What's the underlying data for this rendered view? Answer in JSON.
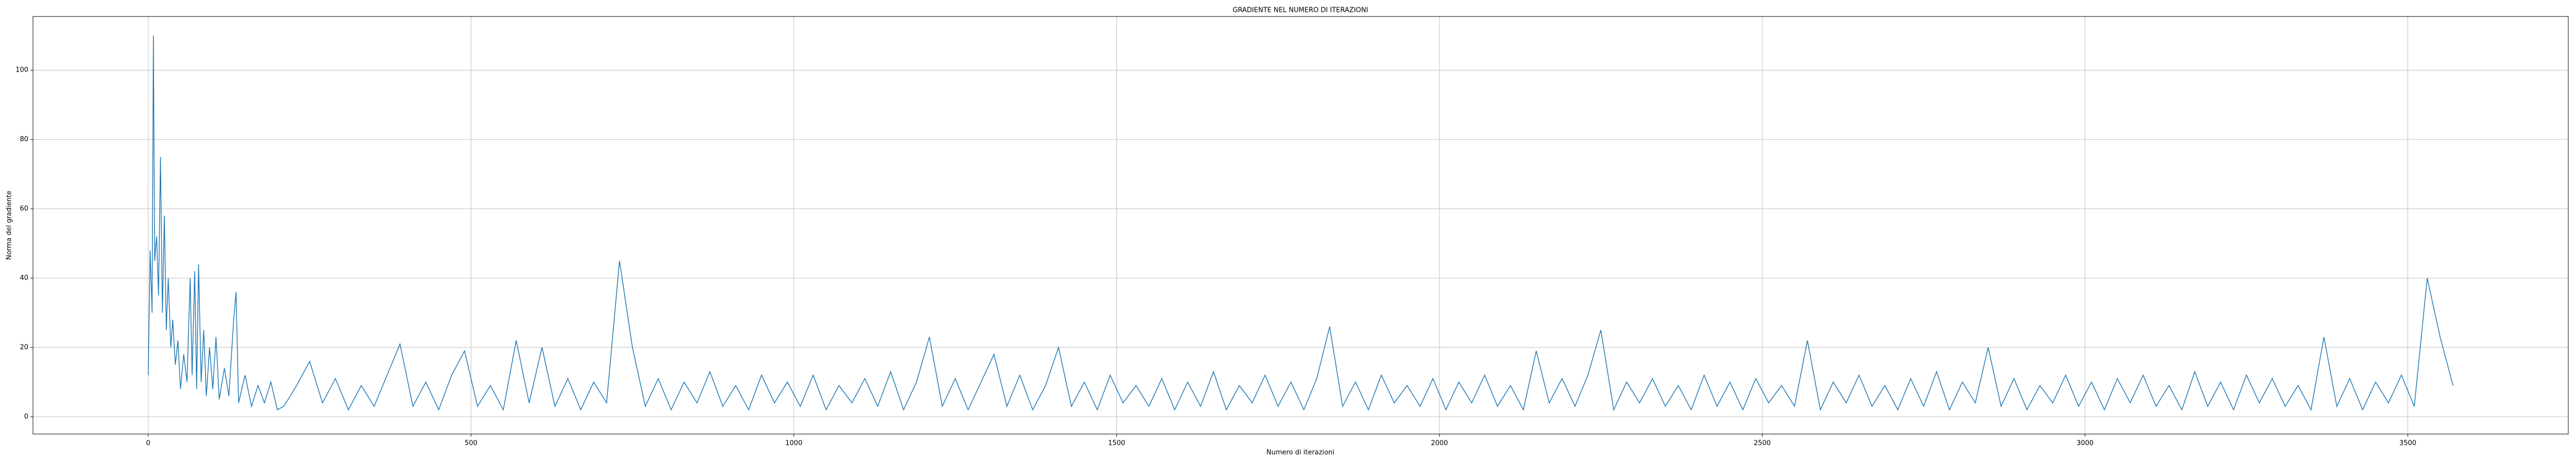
{
  "chart_data": {
    "type": "line",
    "title": "GRADIENTE NEL NUMERO DI ITERAZIONI",
    "xlabel": "Numero di iterazioni",
    "ylabel": "Norma del gradiente",
    "x": [
      0,
      3,
      6,
      8,
      10,
      13,
      16,
      19,
      22,
      25,
      28,
      31,
      35,
      38,
      42,
      46,
      50,
      55,
      60,
      65,
      68,
      72,
      75,
      78,
      82,
      86,
      90,
      95,
      100,
      105,
      110,
      118,
      125,
      132,
      136,
      140,
      150,
      160,
      170,
      180,
      190,
      200,
      210,
      230,
      250,
      270,
      290,
      310,
      330,
      350,
      370,
      390,
      410,
      430,
      450,
      470,
      490,
      510,
      530,
      550,
      570,
      590,
      610,
      630,
      650,
      670,
      690,
      710,
      730,
      750,
      770,
      790,
      810,
      830,
      850,
      870,
      890,
      910,
      930,
      950,
      970,
      990,
      1010,
      1030,
      1050,
      1070,
      1090,
      1110,
      1130,
      1150,
      1170,
      1190,
      1210,
      1230,
      1250,
      1270,
      1290,
      1310,
      1330,
      1350,
      1370,
      1390,
      1410,
      1430,
      1450,
      1470,
      1490,
      1510,
      1530,
      1550,
      1570,
      1590,
      1610,
      1630,
      1650,
      1670,
      1690,
      1710,
      1730,
      1750,
      1770,
      1790,
      1810,
      1830,
      1850,
      1870,
      1890,
      1910,
      1930,
      1950,
      1970,
      1990,
      2010,
      2030,
      2050,
      2070,
      2090,
      2110,
      2130,
      2150,
      2170,
      2190,
      2210,
      2230,
      2250,
      2270,
      2290,
      2310,
      2330,
      2350,
      2370,
      2390,
      2410,
      2430,
      2450,
      2470,
      2490,
      2510,
      2530,
      2550,
      2570,
      2590,
      2610,
      2630,
      2650,
      2670,
      2690,
      2710,
      2730,
      2750,
      2770,
      2790,
      2810,
      2830,
      2850,
      2870,
      2890,
      2910,
      2930,
      2950,
      2970,
      2990,
      3010,
      3030,
      3050,
      3070,
      3090,
      3110,
      3130,
      3150,
      3170,
      3190,
      3210,
      3230,
      3250,
      3270,
      3290,
      3310,
      3330,
      3350,
      3370,
      3390,
      3410,
      3430,
      3450,
      3470,
      3490,
      3510,
      3530,
      3550,
      3570
    ],
    "series": [
      {
        "color": "#1f77b4",
        "values": [
          12,
          48,
          30,
          110,
          45,
          52,
          35,
          75,
          30,
          58,
          25,
          40,
          20,
          28,
          15,
          22,
          8,
          18,
          10,
          40,
          12,
          42,
          8,
          44,
          10,
          25,
          6,
          20,
          8,
          23,
          5,
          14,
          6,
          27,
          36,
          4,
          12,
          3,
          9,
          4,
          10,
          2,
          3,
          9,
          16,
          4,
          11,
          2,
          9,
          3,
          12,
          21,
          3,
          10,
          2,
          12,
          19,
          3,
          9,
          2,
          22,
          4,
          20,
          3,
          11,
          2,
          10,
          4,
          45,
          20,
          3,
          11,
          2,
          10,
          4,
          13,
          3,
          9,
          2,
          12,
          4,
          10,
          3,
          12,
          2,
          9,
          4,
          11,
          3,
          13,
          2,
          10,
          23,
          3,
          11,
          2,
          10,
          18,
          3,
          12,
          2,
          9,
          20,
          3,
          10,
          2,
          12,
          4,
          9,
          3,
          11,
          2,
          10,
          3,
          13,
          2,
          9,
          4,
          12,
          3,
          10,
          2,
          11,
          26,
          3,
          10,
          2,
          12,
          4,
          9,
          3,
          11,
          2,
          10,
          4,
          12,
          3,
          9,
          2,
          19,
          4,
          11,
          3,
          12,
          25,
          2,
          10,
          4,
          11,
          3,
          9,
          2,
          12,
          3,
          10,
          2,
          11,
          4,
          9,
          3,
          22,
          2,
          10,
          4,
          12,
          3,
          9,
          2,
          11,
          3,
          13,
          2,
          10,
          4,
          20,
          3,
          11,
          2,
          9,
          4,
          12,
          3,
          10,
          2,
          11,
          4,
          12,
          3,
          9,
          2,
          13,
          3,
          10,
          2,
          12,
          4,
          11,
          3,
          9,
          2,
          23,
          3,
          11,
          2,
          10,
          4,
          12,
          3,
          40,
          23,
          9
        ]
      }
    ],
    "xlim": [
      -178.5,
      3748.5
    ],
    "xticks": [
      0,
      500,
      1000,
      1500,
      2000,
      2500,
      3000,
      3500
    ],
    "ylim": [
      -5,
      115.5
    ],
    "yticks": [
      0,
      20,
      40,
      60,
      80,
      100
    ],
    "grid": true
  }
}
